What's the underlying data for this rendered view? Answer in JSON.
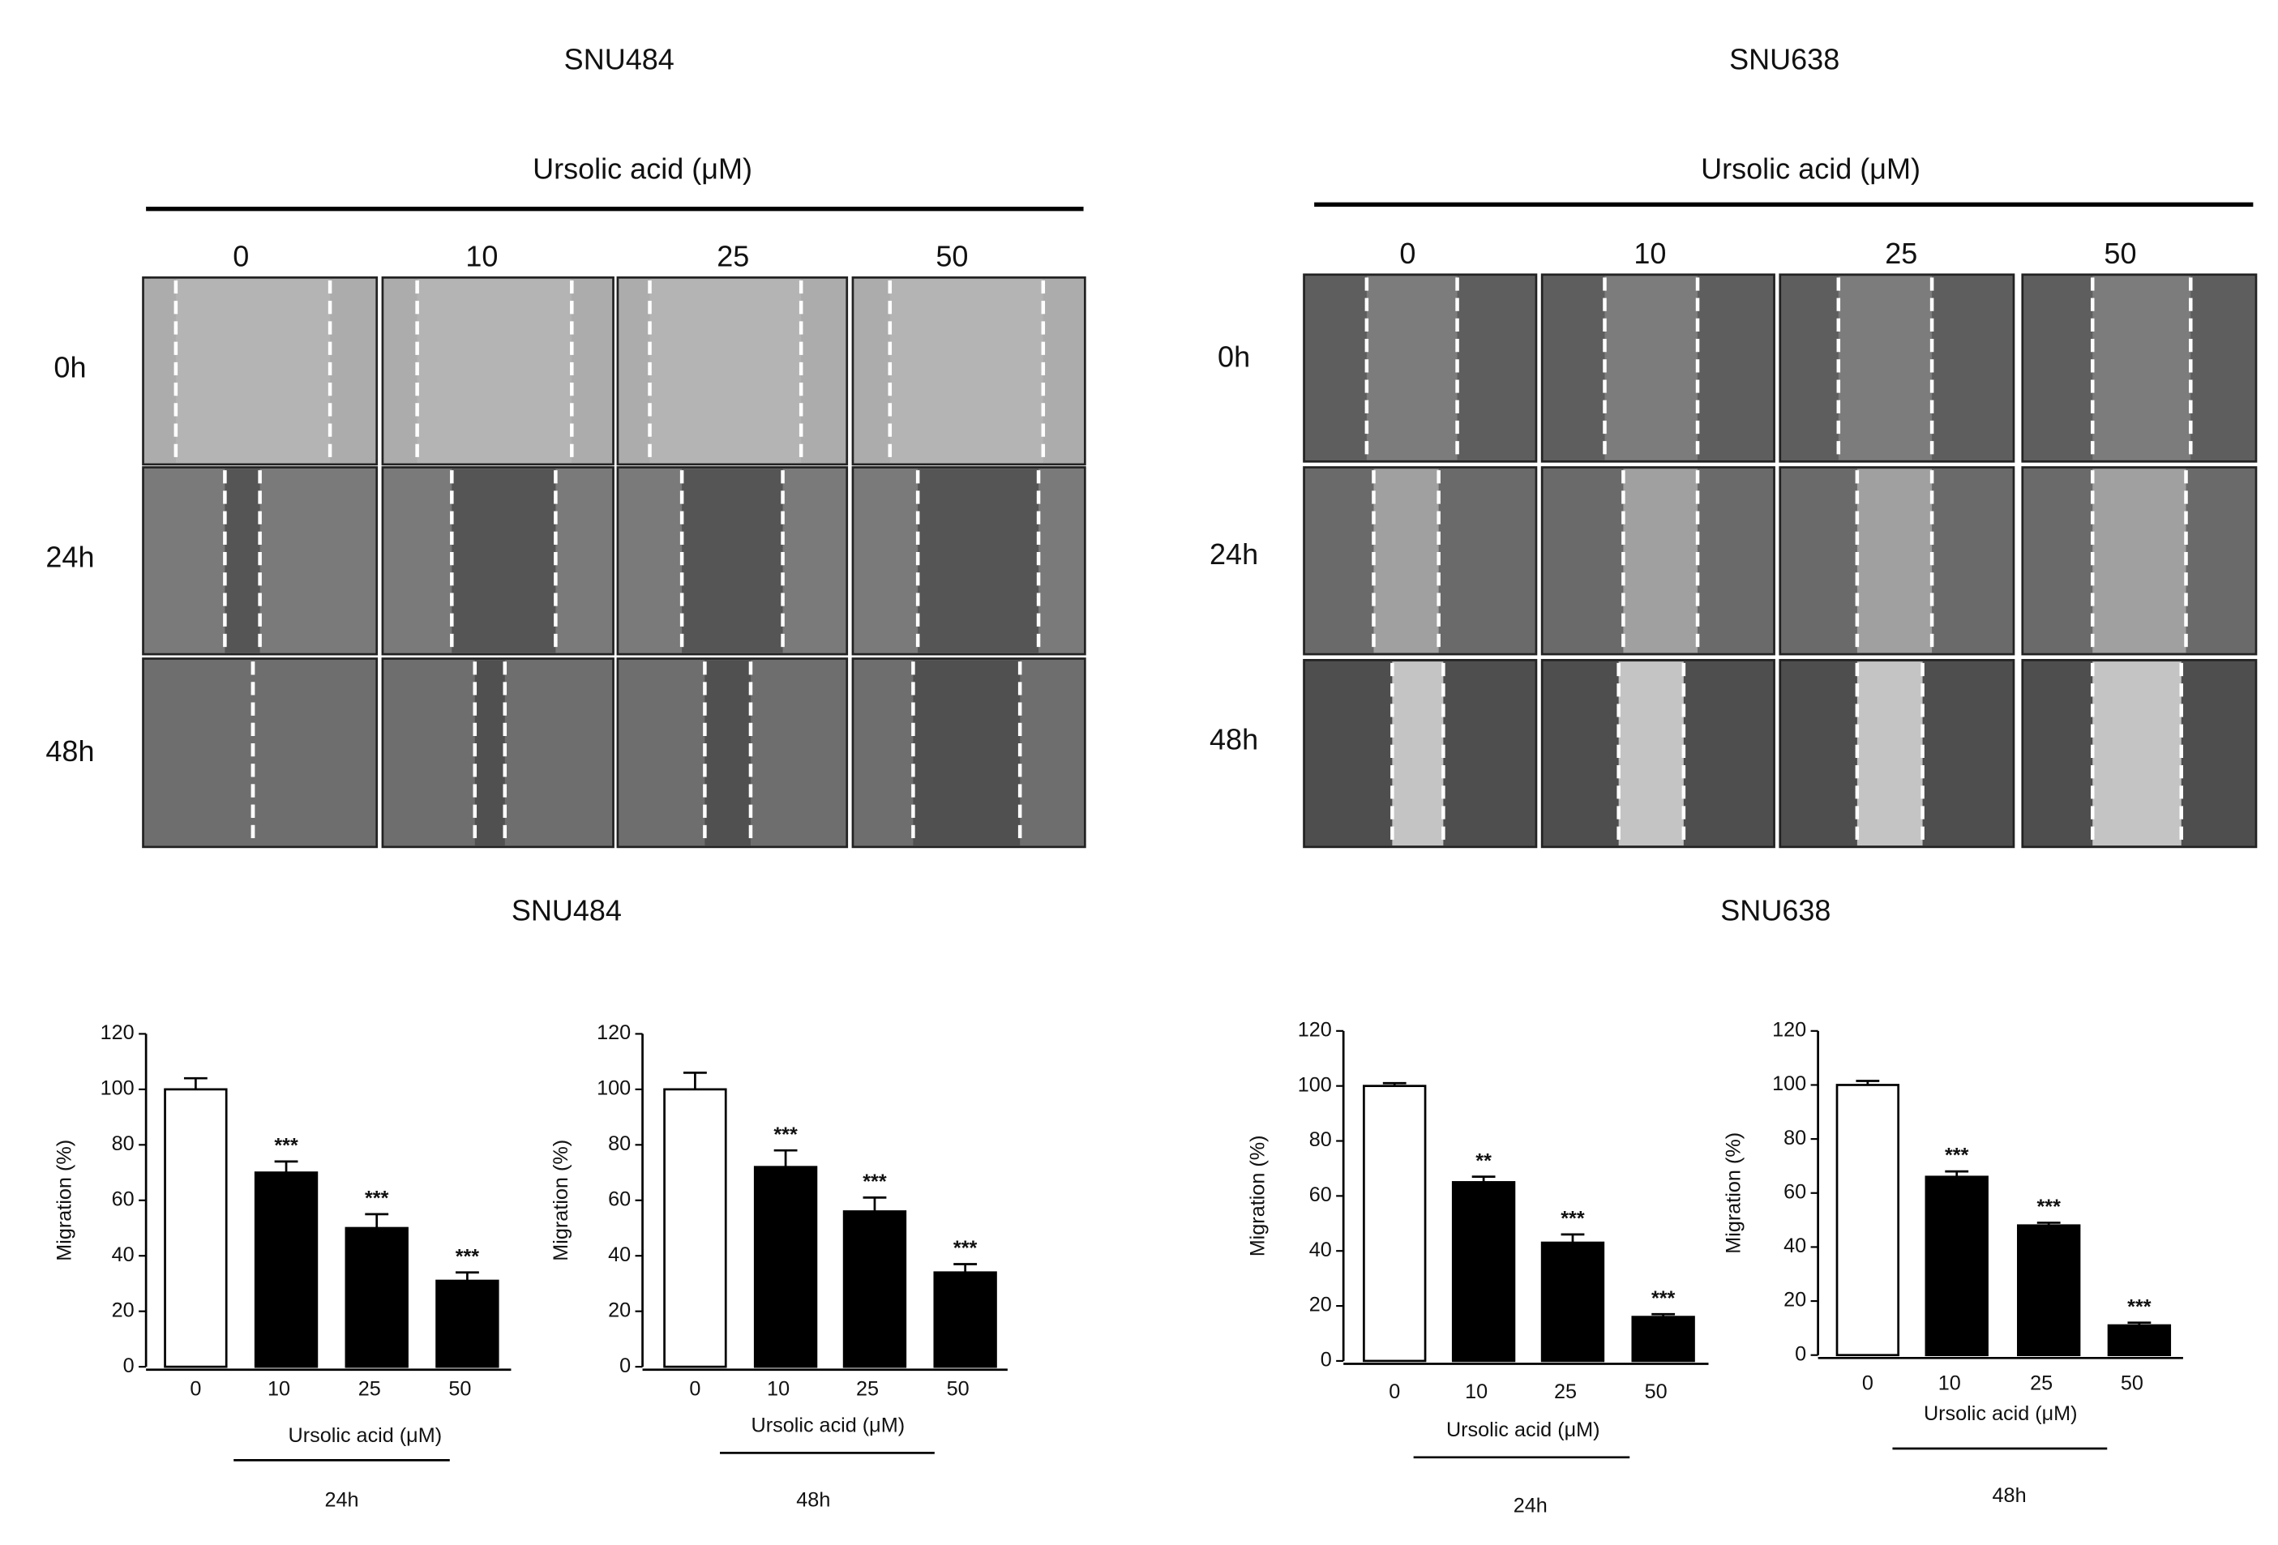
{
  "micrographs": [
    {
      "title": "SNU484",
      "treatment": "Ursolic acid (μM)",
      "columns": [
        "0",
        "10",
        "25",
        "50"
      ],
      "rows": [
        "0h",
        "24h",
        "48h"
      ]
    },
    {
      "title": "SNU638",
      "treatment": "Ursolic acid (μM)",
      "columns": [
        "0",
        "10",
        "25",
        "50"
      ],
      "rows": [
        "0h",
        "24h",
        "48h"
      ]
    }
  ],
  "section_titles": [
    "SNU484",
    "SNU638"
  ],
  "chart_data": [
    {
      "type": "bar",
      "ylabel": "Migration (%)",
      "xlabel": "Ursolic acid (μM)",
      "time": "24h",
      "categories": [
        "0",
        "10",
        "25",
        "50"
      ],
      "values": [
        100,
        70,
        50,
        31
      ],
      "errors": [
        4,
        4,
        5,
        3
      ],
      "annotations": [
        null,
        "***",
        "***",
        "***"
      ],
      "colors": [
        "#ffffff",
        "#000000",
        "#000000",
        "#000000"
      ],
      "ylim": [
        0,
        120
      ],
      "yticks": [
        0,
        20,
        40,
        60,
        80,
        100,
        120
      ],
      "grid": false
    },
    {
      "type": "bar",
      "ylabel": "Migration (%)",
      "xlabel": "Ursolic acid (μM)",
      "time": "48h",
      "categories": [
        "0",
        "10",
        "25",
        "50"
      ],
      "values": [
        100,
        72,
        56,
        34
      ],
      "errors": [
        6,
        6,
        5,
        3
      ],
      "annotations": [
        null,
        "***",
        "***",
        "***"
      ],
      "colors": [
        "#ffffff",
        "#000000",
        "#000000",
        "#000000"
      ],
      "ylim": [
        0,
        120
      ],
      "yticks": [
        0,
        20,
        40,
        60,
        80,
        100,
        120
      ],
      "grid": false
    },
    {
      "type": "bar",
      "ylabel": "Migration (%)",
      "xlabel": "Ursolic acid (μM)",
      "time": "24h",
      "categories": [
        "0",
        "10",
        "25",
        "50"
      ],
      "values": [
        100,
        65,
        43,
        16
      ],
      "errors": [
        1,
        2,
        3,
        1
      ],
      "annotations": [
        null,
        "**",
        "***",
        "***"
      ],
      "colors": [
        "#ffffff",
        "#000000",
        "#000000",
        "#000000"
      ],
      "ylim": [
        0,
        120
      ],
      "yticks": [
        0,
        20,
        40,
        60,
        80,
        100,
        120
      ],
      "grid": false
    },
    {
      "type": "bar",
      "ylabel": "Migration (%)",
      "xlabel": "Ursolic acid (μM)",
      "time": "48h",
      "categories": [
        "0",
        "10",
        "25",
        "50"
      ],
      "values": [
        100,
        66,
        48,
        11
      ],
      "errors": [
        1.5,
        2,
        1,
        1
      ],
      "annotations": [
        null,
        "***",
        "***",
        "***"
      ],
      "colors": [
        "#ffffff",
        "#000000",
        "#000000",
        "#000000"
      ],
      "ylim": [
        0,
        120
      ],
      "yticks": [
        0,
        20,
        40,
        60,
        80,
        100,
        120
      ],
      "grid": false
    }
  ]
}
